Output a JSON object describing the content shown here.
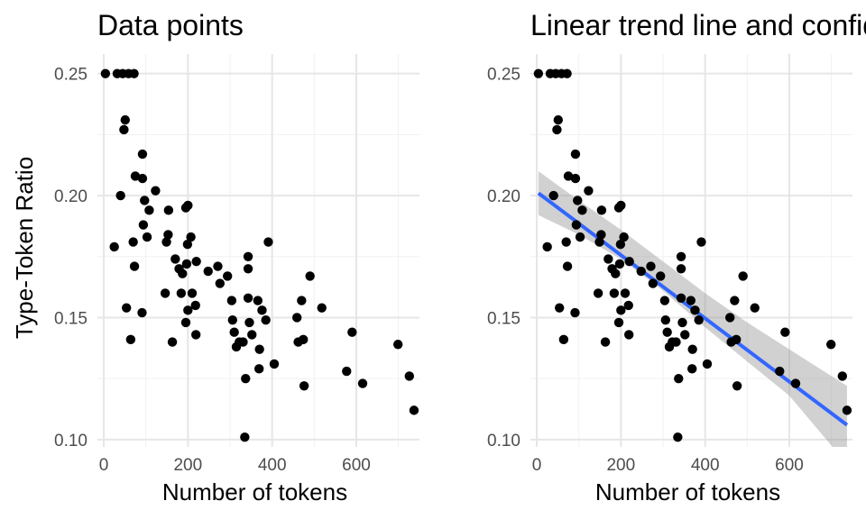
{
  "chart_data": [
    {
      "type": "scatter",
      "title": "Data points",
      "xlabel": "Number of tokens",
      "ylabel": "Type-Token Ratio",
      "xlim": [
        -15,
        750
      ],
      "ylim": [
        0.097,
        0.258
      ],
      "xticks": [
        0,
        200,
        400,
        600
      ],
      "xtick_labels": [
        "0",
        "200",
        "400",
        "600"
      ],
      "yticks": [
        0.1,
        0.15,
        0.2,
        0.25
      ],
      "ytick_labels": [
        "0.10",
        "0.15",
        "0.20",
        "0.25"
      ],
      "grid": true,
      "points": [
        [
          4,
          0.25
        ],
        [
          32,
          0.25
        ],
        [
          45,
          0.25
        ],
        [
          59,
          0.25
        ],
        [
          72,
          0.25
        ],
        [
          48,
          0.227
        ],
        [
          51,
          0.231
        ],
        [
          40,
          0.2
        ],
        [
          75,
          0.208
        ],
        [
          92,
          0.207
        ],
        [
          92,
          0.217
        ],
        [
          123,
          0.202
        ],
        [
          97,
          0.198
        ],
        [
          108,
          0.194
        ],
        [
          154,
          0.194
        ],
        [
          195,
          0.195
        ],
        [
          200,
          0.196
        ],
        [
          25,
          0.179
        ],
        [
          70,
          0.181
        ],
        [
          94,
          0.188
        ],
        [
          103,
          0.183
        ],
        [
          149,
          0.181
        ],
        [
          153,
          0.184
        ],
        [
          207,
          0.183
        ],
        [
          199,
          0.18
        ],
        [
          73,
          0.171
        ],
        [
          170,
          0.174
        ],
        [
          179,
          0.17
        ],
        [
          187,
          0.168
        ],
        [
          197,
          0.172
        ],
        [
          220,
          0.173
        ],
        [
          248,
          0.169
        ],
        [
          271,
          0.171
        ],
        [
          276,
          0.164
        ],
        [
          294,
          0.167
        ],
        [
          343,
          0.175
        ],
        [
          343,
          0.17
        ],
        [
          391,
          0.181
        ],
        [
          54,
          0.154
        ],
        [
          64,
          0.141
        ],
        [
          91,
          0.152
        ],
        [
          146,
          0.16
        ],
        [
          163,
          0.14
        ],
        [
          184,
          0.16
        ],
        [
          195,
          0.148
        ],
        [
          200,
          0.153
        ],
        [
          210,
          0.16
        ],
        [
          218,
          0.155
        ],
        [
          219,
          0.143
        ],
        [
          304,
          0.157
        ],
        [
          306,
          0.149
        ],
        [
          310,
          0.144
        ],
        [
          315,
          0.138
        ],
        [
          322,
          0.14
        ],
        [
          331,
          0.14
        ],
        [
          337,
          0.125
        ],
        [
          343,
          0.158
        ],
        [
          346,
          0.148
        ],
        [
          352,
          0.143
        ],
        [
          366,
          0.157
        ],
        [
          370,
          0.137
        ],
        [
          376,
          0.153
        ],
        [
          385,
          0.149
        ],
        [
          369,
          0.129
        ],
        [
          405,
          0.131
        ],
        [
          459,
          0.15
        ],
        [
          462,
          0.14
        ],
        [
          470,
          0.157
        ],
        [
          474,
          0.141
        ],
        [
          476,
          0.122
        ],
        [
          490,
          0.167
        ],
        [
          518,
          0.154
        ],
        [
          577,
          0.128
        ],
        [
          590,
          0.144
        ],
        [
          615,
          0.123
        ],
        [
          699,
          0.139
        ],
        [
          726,
          0.126
        ],
        [
          737,
          0.112
        ],
        [
          335,
          0.101
        ]
      ]
    },
    {
      "type": "scatter",
      "title": "Linear trend line and confidence interval",
      "xlabel": "Number of tokens",
      "ylabel": "",
      "xlim": [
        -15,
        750
      ],
      "ylim": [
        0.097,
        0.258
      ],
      "xticks": [
        0,
        200,
        400,
        600
      ],
      "xtick_labels": [
        "0",
        "200",
        "400",
        "600"
      ],
      "yticks": [
        0.1,
        0.15,
        0.2,
        0.25
      ],
      "ytick_labels": [
        "0.10",
        "0.15",
        "0.20",
        "0.25"
      ],
      "grid": true,
      "points": [
        [
          4,
          0.25
        ],
        [
          32,
          0.25
        ],
        [
          45,
          0.25
        ],
        [
          59,
          0.25
        ],
        [
          72,
          0.25
        ],
        [
          48,
          0.227
        ],
        [
          51,
          0.231
        ],
        [
          40,
          0.2
        ],
        [
          75,
          0.208
        ],
        [
          92,
          0.207
        ],
        [
          92,
          0.217
        ],
        [
          123,
          0.202
        ],
        [
          97,
          0.198
        ],
        [
          108,
          0.194
        ],
        [
          154,
          0.194
        ],
        [
          195,
          0.195
        ],
        [
          200,
          0.196
        ],
        [
          25,
          0.179
        ],
        [
          70,
          0.181
        ],
        [
          94,
          0.188
        ],
        [
          103,
          0.183
        ],
        [
          149,
          0.181
        ],
        [
          153,
          0.184
        ],
        [
          207,
          0.183
        ],
        [
          199,
          0.18
        ],
        [
          73,
          0.171
        ],
        [
          170,
          0.174
        ],
        [
          179,
          0.17
        ],
        [
          187,
          0.168
        ],
        [
          197,
          0.172
        ],
        [
          220,
          0.173
        ],
        [
          248,
          0.169
        ],
        [
          271,
          0.171
        ],
        [
          276,
          0.164
        ],
        [
          294,
          0.167
        ],
        [
          343,
          0.175
        ],
        [
          343,
          0.17
        ],
        [
          391,
          0.181
        ],
        [
          54,
          0.154
        ],
        [
          64,
          0.141
        ],
        [
          91,
          0.152
        ],
        [
          146,
          0.16
        ],
        [
          163,
          0.14
        ],
        [
          184,
          0.16
        ],
        [
          195,
          0.148
        ],
        [
          200,
          0.153
        ],
        [
          210,
          0.16
        ],
        [
          218,
          0.155
        ],
        [
          219,
          0.143
        ],
        [
          304,
          0.157
        ],
        [
          306,
          0.149
        ],
        [
          310,
          0.144
        ],
        [
          315,
          0.138
        ],
        [
          322,
          0.14
        ],
        [
          331,
          0.14
        ],
        [
          337,
          0.125
        ],
        [
          343,
          0.158
        ],
        [
          346,
          0.148
        ],
        [
          352,
          0.143
        ],
        [
          366,
          0.157
        ],
        [
          370,
          0.137
        ],
        [
          376,
          0.153
        ],
        [
          385,
          0.149
        ],
        [
          369,
          0.129
        ],
        [
          405,
          0.131
        ],
        [
          459,
          0.15
        ],
        [
          462,
          0.14
        ],
        [
          470,
          0.157
        ],
        [
          474,
          0.141
        ],
        [
          476,
          0.122
        ],
        [
          490,
          0.167
        ],
        [
          518,
          0.154
        ],
        [
          577,
          0.128
        ],
        [
          590,
          0.144
        ],
        [
          615,
          0.123
        ],
        [
          699,
          0.139
        ],
        [
          726,
          0.126
        ],
        [
          737,
          0.112
        ],
        [
          335,
          0.101
        ]
      ],
      "trend_line": {
        "x": [
          4,
          737
        ],
        "y": [
          0.201,
          0.106
        ]
      },
      "confidence_band": {
        "x": [
          4,
          100,
          200,
          300,
          400,
          500,
          600,
          737
        ],
        "lower": [
          0.192,
          0.184,
          0.174,
          0.161,
          0.146,
          0.132,
          0.118,
          0.09
        ],
        "upper": [
          0.21,
          0.198,
          0.186,
          0.173,
          0.16,
          0.148,
          0.137,
          0.122
        ]
      },
      "colors": {
        "trend": "#3366ff",
        "band": "#999999",
        "points": "#000000"
      }
    }
  ]
}
